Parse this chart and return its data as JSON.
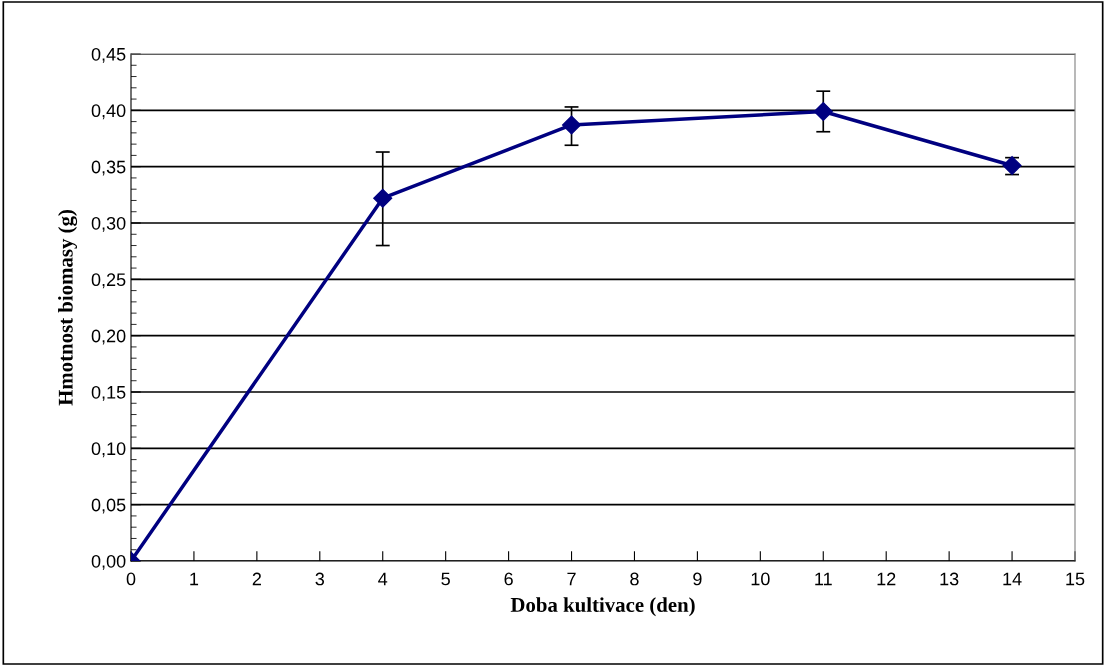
{
  "chart_data": {
    "type": "line",
    "xlabel": "Doba kultivace (den)",
    "ylabel": "Hmotnost biomasy (g)",
    "x": [
      0,
      4,
      7,
      11,
      14
    ],
    "series": [
      {
        "color": "#000080",
        "values": [
          0.0,
          0.322,
          0.387,
          0.399,
          0.351
        ],
        "errors": [
          null,
          [
            0.28,
            0.363
          ],
          [
            0.369,
            0.403
          ],
          [
            0.381,
            0.417
          ],
          [
            0.343,
            0.358
          ]
        ]
      }
    ],
    "marker": "diamond",
    "line_style": "solid",
    "grid": "y",
    "xlim": [
      0,
      15
    ],
    "xticks": [
      0,
      1,
      2,
      3,
      4,
      5,
      6,
      7,
      8,
      9,
      10,
      11,
      12,
      13,
      14,
      15
    ],
    "ylim": [
      0,
      0.45
    ],
    "yticks": [
      {
        "value": 0,
        "label": "0,00"
      },
      {
        "value": 0.05,
        "label": "0,05"
      },
      {
        "value": 0.1,
        "label": "0,10"
      },
      {
        "value": 0.15,
        "label": "0,15"
      },
      {
        "value": 0.2,
        "label": "0,20"
      },
      {
        "value": 0.25,
        "label": "0,25"
      },
      {
        "value": 0.3,
        "label": "0,30"
      },
      {
        "value": 0.35,
        "label": "0,35"
      },
      {
        "value": 0.4,
        "label": "0,40"
      },
      {
        "value": 0.45,
        "label": "0,45"
      }
    ]
  }
}
